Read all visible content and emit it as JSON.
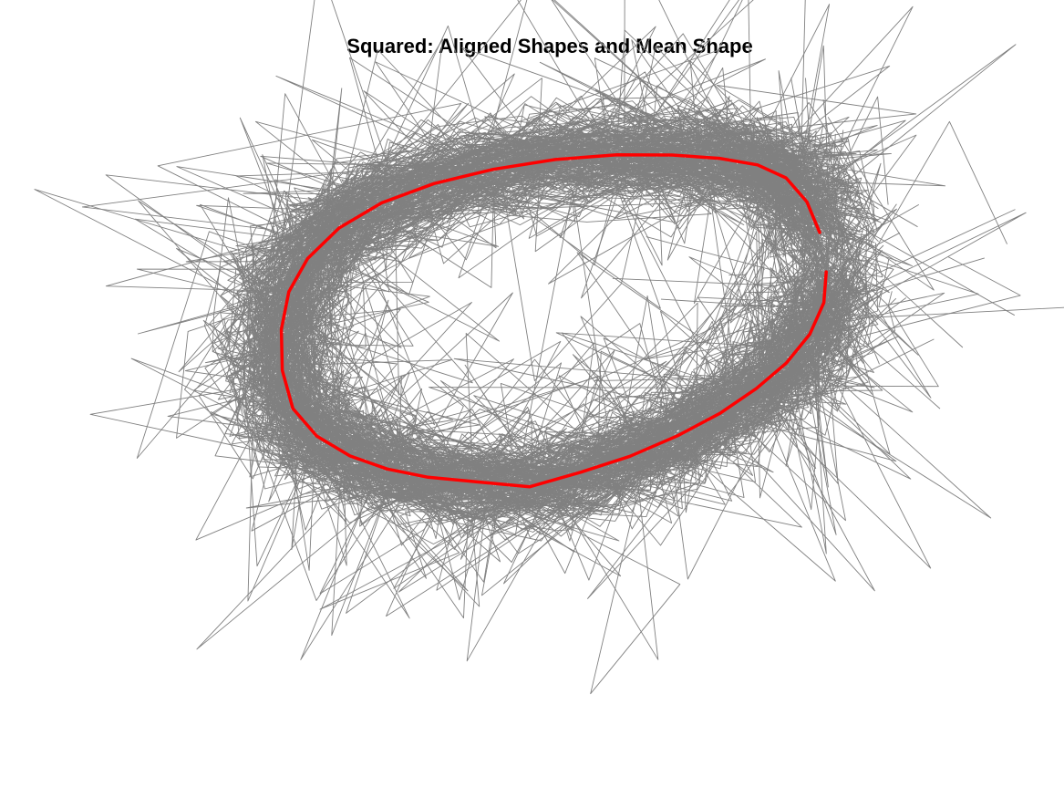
{
  "chart_data": {
    "type": "line",
    "title": "Squared: Aligned Shapes and Mean Shape",
    "xlabel": "",
    "ylabel": "",
    "axes_visible": false,
    "grid": false,
    "legend": "none",
    "colors": {
      "aligned_shapes": "#808080",
      "mean_shape": "#ff0000",
      "background": "#ffffff"
    },
    "xlim": [
      -1.0,
      1.0
    ],
    "ylim": [
      -1.0,
      1.0
    ],
    "series": [
      {
        "role": "mean",
        "x": [
          0.886,
          0.847,
          0.784,
          0.697,
          0.581,
          0.437,
          0.268,
          0.081,
          -0.109,
          -0.289,
          -0.448,
          -0.578,
          -0.674,
          -0.731,
          -0.754,
          -0.751,
          -0.719,
          -0.646,
          -0.545,
          -0.432,
          -0.307,
          -0.161,
          0.003,
          0.158,
          0.308,
          0.453,
          0.583,
          0.693,
          0.785,
          0.856,
          0.899,
          0.906
        ],
        "y": [
          0.425,
          0.529,
          0.609,
          0.653,
          0.675,
          0.686,
          0.687,
          0.671,
          0.638,
          0.59,
          0.525,
          0.44,
          0.337,
          0.225,
          0.098,
          -0.04,
          -0.169,
          -0.262,
          -0.329,
          -0.373,
          -0.401,
          -0.416,
          -0.433,
          -0.384,
          -0.33,
          -0.261,
          -0.185,
          -0.102,
          -0.015,
          0.082,
          0.188,
          0.292
        ]
      }
    ],
    "aligned_shapes": {
      "count": 250,
      "points_per_shape": 32,
      "noise": 0.07,
      "spike_probability": 0.07,
      "scale_variation": 0.06
    }
  }
}
